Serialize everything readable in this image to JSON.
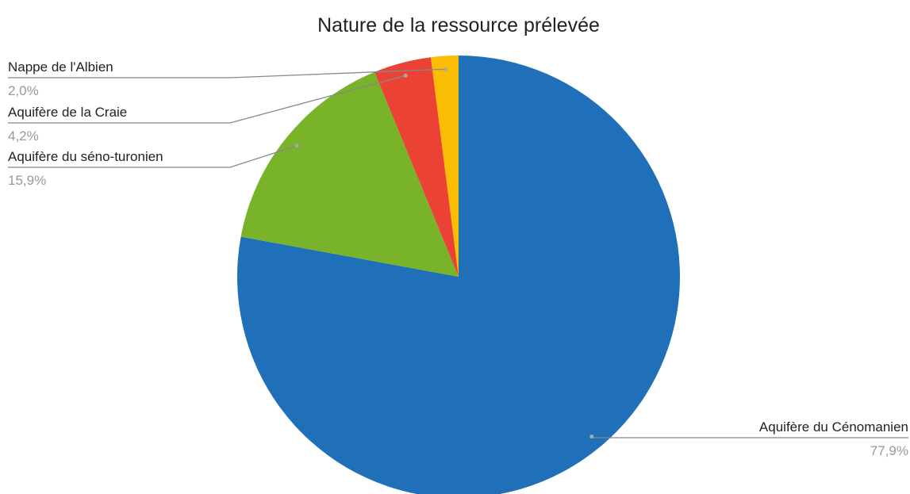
{
  "chart_data": {
    "type": "pie",
    "title": "Nature de la ressource prélevée",
    "categories": [
      "Aquifère du Cénomanien",
      "Aquifère du séno-turonien",
      "Aquifère de la Craie",
      "Nappe de l'Albien"
    ],
    "values": [
      77.9,
      15.9,
      4.2,
      2.0
    ],
    "value_labels": [
      "77,9%",
      "15,9%",
      "4,2%",
      "2,0%"
    ],
    "colors": [
      "#1f70b8",
      "#78b32a",
      "#ea4335",
      "#fbbc04"
    ]
  }
}
